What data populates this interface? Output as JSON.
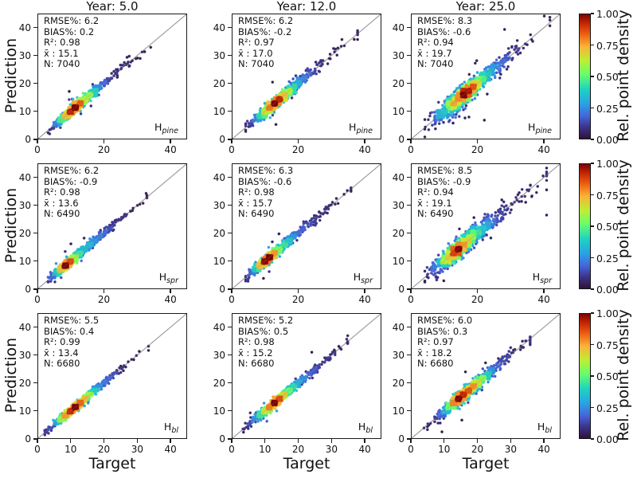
{
  "figure": {
    "background": "#ffffff",
    "col_titles": [
      "Year: 5.0",
      "Year: 12.0",
      "Year: 25.0"
    ],
    "ylabel": "Prediction",
    "xlabel": "Target",
    "colorbar": {
      "label": "Rel. point density",
      "ticks": [
        "1.00",
        "0.75",
        "0.50",
        "0.25",
        "0.00"
      ]
    },
    "y_ticks": [
      "40",
      "30",
      "20",
      "10",
      "0"
    ],
    "x_ticks_top": [
      "0",
      "20",
      "40"
    ],
    "x_ticks_bottom": [
      "0",
      "10",
      "20",
      "30",
      "40"
    ]
  },
  "chart_data": {
    "type": "scatter",
    "description": "3x3 grid of prediction-vs-target density scatter plots with 1:1 identity line; color encodes relative point density",
    "xlabel": "Target",
    "ylabel": "Prediction",
    "axis_range": [
      0,
      45
    ],
    "y_tick_values": [
      0,
      10,
      20,
      30,
      40
    ],
    "x_tick_values_top_rows": [
      0,
      20,
      40
    ],
    "x_tick_values_bottom_row": [
      0,
      10,
      20,
      30,
      40
    ],
    "identity_line": true,
    "grid": false,
    "colorbar": {
      "label": "Rel. point density",
      "range": [
        0,
        1
      ],
      "ticks": [
        0.0,
        0.25,
        0.5,
        0.75,
        1.0
      ],
      "position": "right-of-each-row"
    },
    "colormap": {
      "name": "turbo/jet-like",
      "stops": [
        [
          0.0,
          "#30123b"
        ],
        [
          0.1,
          "#3d3790"
        ],
        [
          0.18,
          "#4565da"
        ],
        [
          0.28,
          "#2aa2e4"
        ],
        [
          0.4,
          "#1fd4c0"
        ],
        [
          0.52,
          "#6bfd69"
        ],
        [
          0.63,
          "#bdee34"
        ],
        [
          0.74,
          "#f9b338"
        ],
        [
          0.84,
          "#ee6012"
        ],
        [
          0.93,
          "#c22402"
        ],
        [
          1.0,
          "#7a0403"
        ]
      ]
    },
    "cols": [
      "Year: 5.0",
      "Year: 12.0",
      "Year: 25.0"
    ],
    "rows": [
      {
        "label_main": "H",
        "label_sub": "pine"
      },
      {
        "label_main": "H",
        "label_sub": "spr"
      },
      {
        "label_main": "H",
        "label_sub": "bl"
      }
    ],
    "panels": [
      {
        "row": 0,
        "col": 0,
        "year": 5.0,
        "label": {
          "main": "H",
          "sub": "pine"
        },
        "stats": {
          "rmse_pct": 6.2,
          "bias_pct": 0.2,
          "r2": 0.98,
          "mean_xbar": 15.1,
          "n": 7040
        },
        "stats_lines": [
          "RMSE%: 6.2",
          "BIAS%: 0.2",
          "R²: 0.98",
          "x̄ : 15.1",
          "N: 7040"
        ],
        "cloud": {
          "seed": 11,
          "points": 1000,
          "mode": 11.5,
          "sig_left": 3.0,
          "sig_right": 3.4,
          "skew": 0.55,
          "noise": 0.85,
          "min": 3,
          "max": 35.5
        }
      },
      {
        "row": 0,
        "col": 1,
        "year": 12.0,
        "label": {
          "main": "H",
          "sub": "pine"
        },
        "stats": {
          "rmse_pct": 6.2,
          "bias_pct": -0.2,
          "r2": 0.97,
          "mean_xbar": 17.0,
          "n": 7040
        },
        "stats_lines": [
          "RMSE%: 6.2",
          "BIAS%: -0.2",
          "R²: 0.97",
          "x̄ : 17.0",
          "N: 7040"
        ],
        "cloud": {
          "seed": 22,
          "points": 1000,
          "mode": 13.5,
          "sig_left": 3.4,
          "sig_right": 3.8,
          "skew": 0.55,
          "noise": 1.05,
          "min": 4,
          "max": 38
        }
      },
      {
        "row": 0,
        "col": 2,
        "year": 25.0,
        "label": {
          "main": "H",
          "sub": "pine"
        },
        "stats": {
          "rmse_pct": 8.3,
          "bias_pct": -0.6,
          "r2": 0.94,
          "mean_xbar": 19.7,
          "n": 7040
        },
        "stats_lines": [
          "RMSE%: 8.3",
          "BIAS%: -0.6",
          "R²: 0.94",
          "x̄ : 19.7",
          "N: 7040"
        ],
        "cloud": {
          "seed": 33,
          "points": 1050,
          "mode": 16.5,
          "sig_left": 4.2,
          "sig_right": 4.2,
          "skew": 0.55,
          "noise": 1.8,
          "min": 4,
          "max": 42
        }
      },
      {
        "row": 1,
        "col": 0,
        "year": 5.0,
        "label": {
          "main": "H",
          "sub": "spr"
        },
        "stats": {
          "rmse_pct": 6.2,
          "bias_pct": -0.9,
          "r2": 0.98,
          "mean_xbar": 13.6,
          "n": 6490
        },
        "stats_lines": [
          "RMSE%: 6.2",
          "BIAS%: -0.9",
          "R²: 0.98",
          "x̄ : 13.6",
          "N: 6490"
        ],
        "cloud": {
          "seed": 44,
          "points": 950,
          "mode": 9.5,
          "sig_left": 2.4,
          "sig_right": 4.4,
          "skew": 0.55,
          "noise": 0.8,
          "min": 3,
          "max": 33
        }
      },
      {
        "row": 1,
        "col": 1,
        "year": 12.0,
        "label": {
          "main": "H",
          "sub": "spr"
        },
        "stats": {
          "rmse_pct": 6.3,
          "bias_pct": -0.6,
          "r2": 0.98,
          "mean_xbar": 15.7,
          "n": 6490
        },
        "stats_lines": [
          "RMSE%: 6.3",
          "BIAS%: -0.6",
          "R²: 0.98",
          "x̄ : 15.7",
          "N: 6490"
        ],
        "cloud": {
          "seed": 55,
          "points": 950,
          "mode": 11.5,
          "sig_left": 2.8,
          "sig_right": 4.6,
          "skew": 0.55,
          "noise": 0.92,
          "min": 4,
          "max": 36
        }
      },
      {
        "row": 1,
        "col": 2,
        "year": 25.0,
        "label": {
          "main": "H",
          "sub": "spr"
        },
        "stats": {
          "rmse_pct": 8.5,
          "bias_pct": -0.9,
          "r2": 0.94,
          "mean_xbar": 19.1,
          "n": 6490
        },
        "stats_lines": [
          "RMSE%: 8.5",
          "BIAS%: -0.9",
          "R²: 0.94",
          "x̄ : 19.1",
          "N: 6490"
        ],
        "cloud": {
          "seed": 66,
          "points": 1000,
          "mode": 15.0,
          "sig_left": 3.8,
          "sig_right": 4.8,
          "skew": 0.55,
          "noise": 1.8,
          "min": 4,
          "max": 41
        }
      },
      {
        "row": 2,
        "col": 0,
        "year": 5.0,
        "label": {
          "main": "H",
          "sub": "bl"
        },
        "stats": {
          "rmse_pct": 5.5,
          "bias_pct": 0.4,
          "r2": 0.99,
          "mean_xbar": 13.4,
          "n": 6680
        },
        "stats_lines": [
          "RMSE%: 5.5",
          "BIAS%: 0.4",
          "R²: 0.99",
          "x̄ : 13.4",
          "N: 6680"
        ],
        "cloud": {
          "seed": 77,
          "points": 950,
          "mode": 11.5,
          "sig_left": 3.4,
          "sig_right": 3.6,
          "skew": 0.55,
          "noise": 0.72,
          "min": 2,
          "max": 33.5
        }
      },
      {
        "row": 2,
        "col": 1,
        "year": 12.0,
        "label": {
          "main": "H",
          "sub": "bl"
        },
        "stats": {
          "rmse_pct": 5.2,
          "bias_pct": 0.5,
          "r2": 0.98,
          "mean_xbar": 15.2,
          "n": 6680
        },
        "stats_lines": [
          "RMSE%: 5.2",
          "BIAS%: 0.5",
          "R²: 0.98",
          "x̄ : 15.2",
          "N: 6680"
        ],
        "cloud": {
          "seed": 88,
          "points": 950,
          "mode": 13.5,
          "sig_left": 3.6,
          "sig_right": 3.8,
          "skew": 0.55,
          "noise": 0.78,
          "min": 2,
          "max": 35
        }
      },
      {
        "row": 2,
        "col": 2,
        "year": 25.0,
        "label": {
          "main": "H",
          "sub": "bl"
        },
        "stats": {
          "rmse_pct": 6.0,
          "bias_pct": 0.3,
          "r2": 0.97,
          "mean_xbar": 18.2,
          "n": 6680
        },
        "stats_lines": [
          "RMSE%: 6.0",
          "BIAS%: 0.3",
          "R²: 0.97",
          "x̄ : 18.2",
          "N: 6680"
        ],
        "cloud": {
          "seed": 99,
          "points": 1000,
          "mode": 16.5,
          "sig_left": 4.0,
          "sig_right": 4.0,
          "skew": 0.55,
          "noise": 1.15,
          "min": 3,
          "max": 36
        }
      }
    ]
  }
}
